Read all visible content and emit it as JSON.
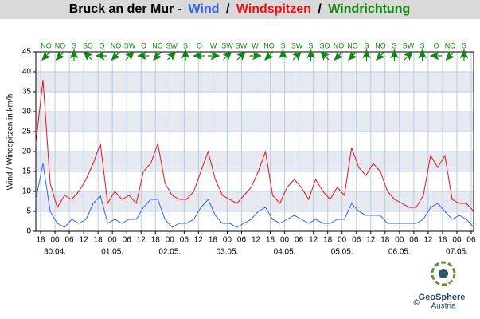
{
  "chart_data": {
    "type": "line",
    "title": "Bruck an der Mur -",
    "separator": "/",
    "y_label": "Wind / Windspitzen in km/h",
    "x": [
      -8,
      -5,
      -2,
      1,
      4,
      7,
      10,
      13,
      16,
      19,
      22,
      25,
      28,
      31,
      34,
      37,
      40,
      43,
      46,
      49,
      52,
      55,
      58,
      61,
      64,
      67,
      70,
      73,
      76,
      79,
      82,
      85,
      88,
      91,
      94,
      97,
      100,
      103,
      106,
      109,
      112,
      115,
      118,
      121,
      124,
      127,
      130,
      133,
      136,
      139,
      142,
      145,
      148,
      151,
      154,
      157,
      160,
      163,
      166,
      169,
      172,
      175
    ],
    "series": [
      {
        "name": "Wind",
        "color": "#3366dd",
        "values": [
          8,
          17,
          5,
          2,
          1,
          3,
          2,
          3,
          7,
          9,
          2,
          3,
          2,
          3,
          3,
          6,
          8,
          8,
          3,
          1,
          2,
          2,
          3,
          6,
          8,
          4,
          2,
          2,
          1,
          2,
          3,
          5,
          6,
          3,
          2,
          3,
          4,
          3,
          2,
          3,
          2,
          2,
          3,
          3,
          7,
          5,
          4,
          4,
          4,
          2,
          2,
          2,
          2,
          2,
          3,
          6,
          7,
          5,
          3,
          4,
          3,
          1
        ]
      },
      {
        "name": "Windspitzen",
        "color": "#ee1111",
        "values": [
          22,
          38,
          12,
          6,
          9,
          8,
          10,
          13,
          17,
          22,
          7,
          10,
          8,
          9,
          7,
          15,
          17,
          22,
          12,
          9,
          8,
          8,
          10,
          15,
          20,
          13,
          9,
          8,
          7,
          9,
          11,
          15,
          20,
          9,
          7,
          11,
          13,
          11,
          8,
          13,
          10,
          8,
          11,
          9,
          21,
          16,
          14,
          17,
          15,
          10,
          8,
          7,
          6,
          6,
          9,
          19,
          16,
          19,
          8,
          7,
          7,
          5
        ]
      }
    ],
    "wind_direction": {
      "name": "Windrichtung",
      "color": "#118811",
      "values": [
        "NO",
        "NO",
        "S",
        "SO",
        "O",
        "NO",
        "SW",
        "O",
        "NO",
        "SW",
        "S",
        "O",
        "W",
        "SW",
        "SW",
        "W",
        "NO",
        "S",
        "SW",
        "S",
        "SO",
        "NO",
        "NO",
        "S",
        "NO",
        "S",
        "SW",
        "S",
        "O",
        "NO",
        "S"
      ]
    },
    "xlim": [
      -8,
      175
    ],
    "ylim": [
      0,
      45
    ],
    "yticks": [
      0,
      5,
      10,
      15,
      20,
      25,
      30,
      35,
      40,
      45
    ],
    "xticks": [
      {
        "value": -6,
        "label": "18"
      },
      {
        "value": 0,
        "label": "00"
      },
      {
        "value": 6,
        "label": "06"
      },
      {
        "value": 12,
        "label": "12"
      },
      {
        "value": 18,
        "label": "18"
      },
      {
        "value": 24,
        "label": "00"
      },
      {
        "value": 30,
        "label": "06"
      },
      {
        "value": 36,
        "label": "12"
      },
      {
        "value": 42,
        "label": "18"
      },
      {
        "value": 48,
        "label": "00"
      },
      {
        "value": 54,
        "label": "06"
      },
      {
        "value": 60,
        "label": "12"
      },
      {
        "value": 66,
        "label": "18"
      },
      {
        "value": 72,
        "label": "00"
      },
      {
        "value": 78,
        "label": "06"
      },
      {
        "value": 84,
        "label": "12"
      },
      {
        "value": 90,
        "label": "18"
      },
      {
        "value": 96,
        "label": "00"
      },
      {
        "value": 102,
        "label": "06"
      },
      {
        "value": 108,
        "label": "12"
      },
      {
        "value": 114,
        "label": "18"
      },
      {
        "value": 120,
        "label": "00"
      },
      {
        "value": 126,
        "label": "06"
      },
      {
        "value": 132,
        "label": "12"
      },
      {
        "value": 138,
        "label": "18"
      },
      {
        "value": 144,
        "label": "00"
      },
      {
        "value": 150,
        "label": "06"
      },
      {
        "value": 156,
        "label": "12"
      },
      {
        "value": 162,
        "label": "18"
      },
      {
        "value": 168,
        "label": "00"
      },
      {
        "value": 174,
        "label": "06"
      }
    ],
    "date_ticks": [
      {
        "value": 0,
        "label": "30.04."
      },
      {
        "value": 24,
        "label": "01.05."
      },
      {
        "value": 48,
        "label": "02.05."
      },
      {
        "value": 72,
        "label": "03.05."
      },
      {
        "value": 96,
        "label": "04.05."
      },
      {
        "value": 120,
        "label": "05.05."
      },
      {
        "value": 144,
        "label": "06.05."
      },
      {
        "value": 168,
        "label": "07.05."
      }
    ],
    "grid": true
  },
  "logo": {
    "name": "GeoSphere",
    "subtitle": "Austria",
    "copyright": "©"
  }
}
